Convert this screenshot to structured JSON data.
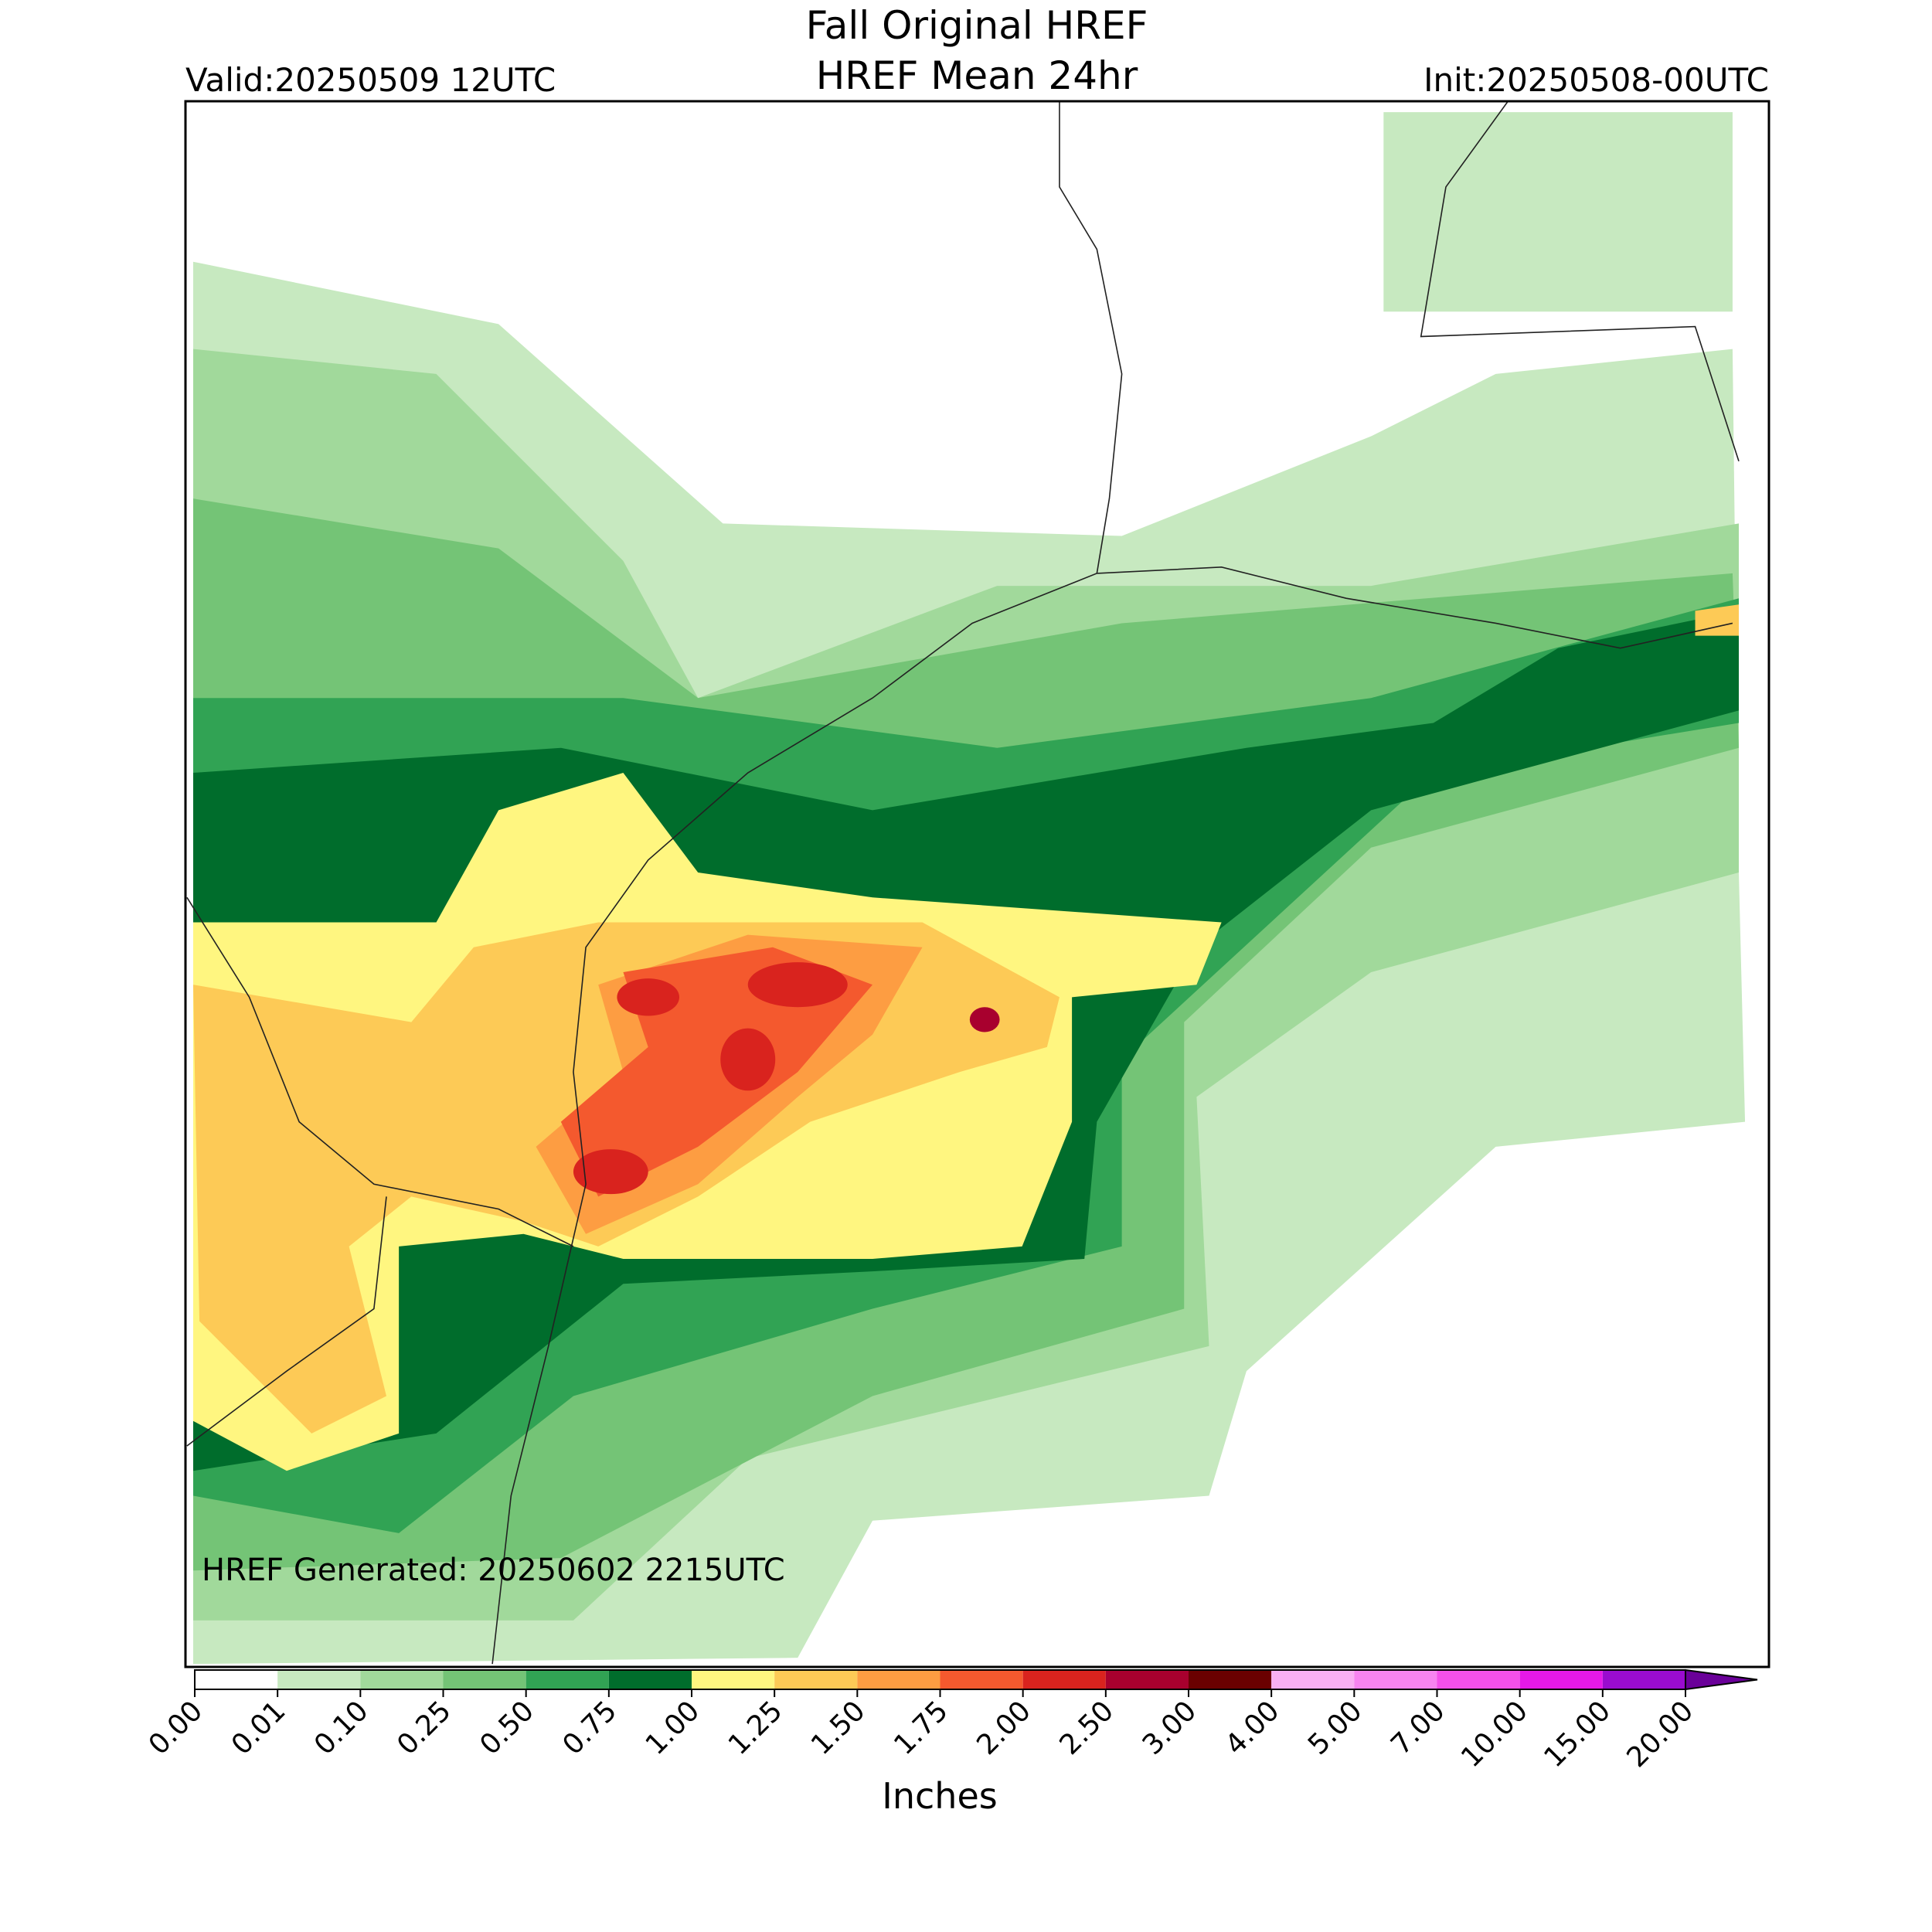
{
  "header": {
    "title": [
      "Fall Original HREF",
      "HREF Mean 24hr"
    ],
    "valid": "Valid:20250509 12UTC",
    "init": "Init:20250508-00UTC"
  },
  "footer": {
    "generated": "HREF Generated: 20250602 2215UTC"
  },
  "colorbar": {
    "label": "Inches",
    "levels": [
      "0.00",
      "0.01",
      "0.10",
      "0.25",
      "0.50",
      "0.75",
      "1.00",
      "1.25",
      "1.50",
      "1.75",
      "2.00",
      "2.50",
      "3.00",
      "4.00",
      "5.00",
      "7.00",
      "10.00",
      "15.00",
      "20.00"
    ],
    "colors": [
      "#ffffff",
      "#c7e9c0",
      "#a1d99b",
      "#74c476",
      "#31a354",
      "#006d2c",
      "#fff680",
      "#fdca56",
      "#fd9d42",
      "#f4592e",
      "#d9231e",
      "#a8002e",
      "#6a0000",
      "#f9b0f3",
      "#f784f0",
      "#f450ea",
      "#e519e8",
      "#9a0ccf"
    ],
    "extend_color": "#6a0099"
  }
}
